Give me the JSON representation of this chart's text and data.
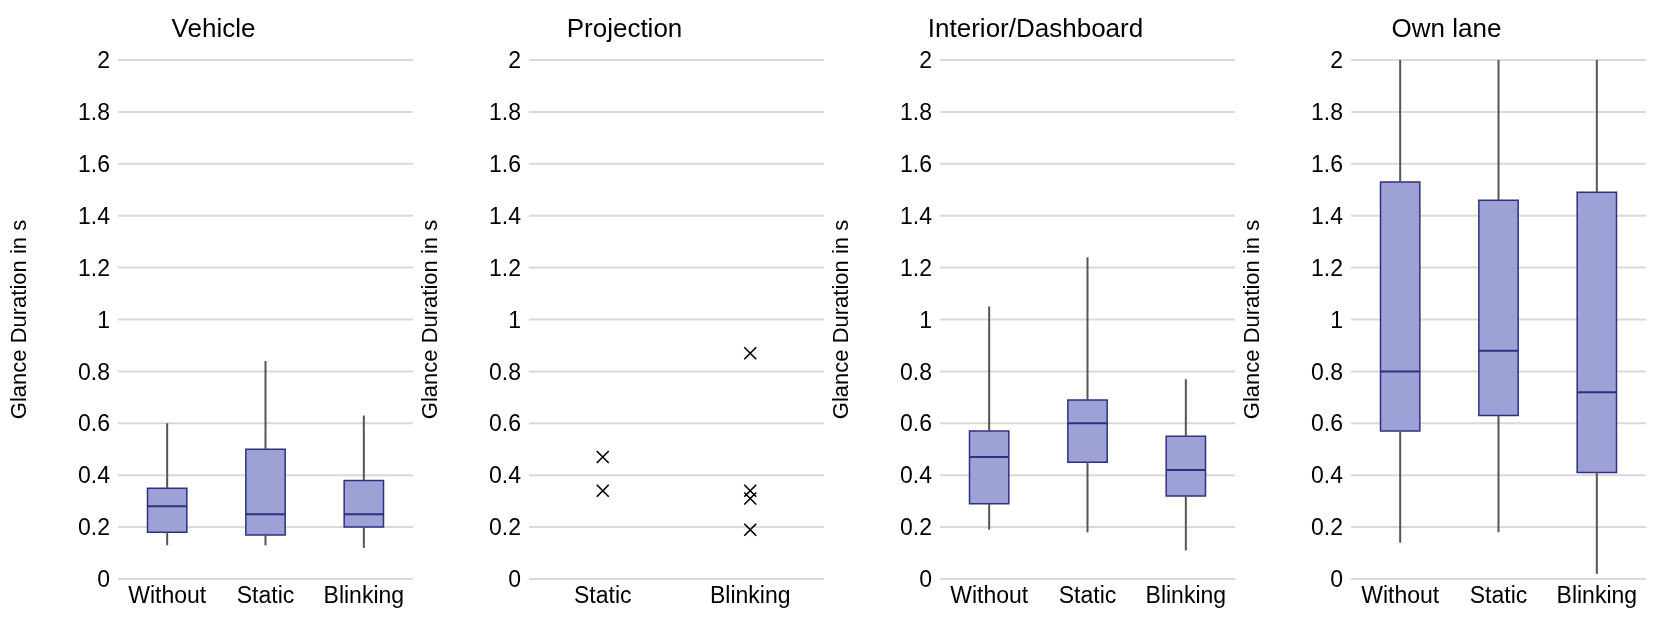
{
  "chart_data": [
    {
      "type": "box",
      "title": "Vehicle",
      "ylabel": "Glance Duration in s",
      "categories": [
        "Without",
        "Static",
        "Blinking"
      ],
      "color": "#9ea1d6",
      "ylim": [
        0,
        2
      ],
      "yticks": [
        0,
        0.2,
        0.4,
        0.6,
        0.8,
        1,
        1.2,
        1.4,
        1.6,
        1.8,
        2
      ],
      "grid": "y",
      "boxes": [
        {
          "low": 0.13,
          "q1": 0.18,
          "median": 0.28,
          "q3": 0.35,
          "high": 0.6
        },
        {
          "low": 0.13,
          "q1": 0.17,
          "median": 0.25,
          "q3": 0.5,
          "high": 0.84
        },
        {
          "low": 0.12,
          "q1": 0.2,
          "median": 0.25,
          "q3": 0.38,
          "high": 0.63
        }
      ]
    },
    {
      "type": "scatter",
      "title": "Projection",
      "ylabel": "Glance Duration in s",
      "categories": [
        "Static",
        "Blinking"
      ],
      "ylim": [
        0,
        2
      ],
      "yticks": [
        0,
        0.2,
        0.4,
        0.6,
        0.8,
        1,
        1.2,
        1.4,
        1.6,
        1.8,
        2
      ],
      "grid": "y",
      "marker": "cross",
      "series": [
        {
          "color": "#000000",
          "x": [
            "Static",
            "Static",
            "Blinking",
            "Blinking",
            "Blinking",
            "Blinking"
          ],
          "values": [
            0.47,
            0.34,
            0.87,
            0.34,
            0.31,
            0.19
          ]
        }
      ]
    },
    {
      "type": "box",
      "title": "Interior/Dashboard",
      "ylabel": "Glance Duration in s",
      "categories": [
        "Without",
        "Static",
        "Blinking"
      ],
      "color": "#9ea1d6",
      "ylim": [
        0,
        2
      ],
      "yticks": [
        0,
        0.2,
        0.4,
        0.6,
        0.8,
        1,
        1.2,
        1.4,
        1.6,
        1.8,
        2
      ],
      "grid": "y",
      "boxes": [
        {
          "low": 0.19,
          "q1": 0.29,
          "median": 0.47,
          "q3": 0.57,
          "high": 1.05
        },
        {
          "low": 0.18,
          "q1": 0.45,
          "median": 0.6,
          "q3": 0.69,
          "high": 1.24
        },
        {
          "low": 0.11,
          "q1": 0.32,
          "median": 0.42,
          "q3": 0.55,
          "high": 0.77
        }
      ]
    },
    {
      "type": "box",
      "title": "Own lane",
      "ylabel": "Glance Duration in s",
      "categories": [
        "Without",
        "Static",
        "Blinking"
      ],
      "color": "#9ea1d6",
      "ylim": [
        0,
        2
      ],
      "yticks": [
        0,
        0.2,
        0.4,
        0.6,
        0.8,
        1,
        1.2,
        1.4,
        1.6,
        1.8,
        2
      ],
      "grid": "y",
      "boxes": [
        {
          "low": 0.14,
          "q1": 0.57,
          "median": 0.8,
          "q3": 1.53,
          "high": 2
        },
        {
          "low": 0.18,
          "q1": 0.63,
          "median": 0.88,
          "q3": 1.46,
          "high": 2
        },
        {
          "low": 0.02,
          "q1": 0.41,
          "median": 0.72,
          "q3": 1.49,
          "high": 2
        }
      ]
    }
  ]
}
